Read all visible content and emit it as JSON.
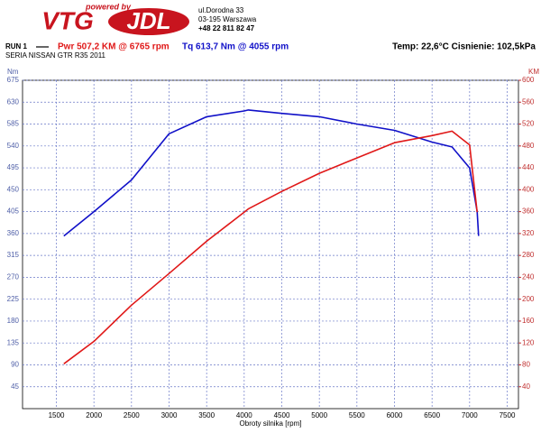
{
  "header": {
    "logo_top": "powered by",
    "logo_left": "VTG",
    "logo_right": "JDL",
    "address": [
      "ul.Dorodna 33",
      "03-195 Warszawa",
      "+48 22 811 82 47"
    ]
  },
  "run": "RUN 1",
  "subtitle": "SERIA NISSAN GTR R35 2011",
  "power_label": "Pwr  507,2 KM @ 6765 rpm",
  "torque_label": "Tq 613,7 Nm @ 4055 rpm",
  "conditions": "Temp: 22,6°C   Cisnienie: 102,5kPa",
  "chart_data": {
    "type": "line",
    "xlabel": "Obroty silnika [rpm]",
    "ylabel": "Nm",
    "y2label": "KM",
    "x": [
      1600,
      2000,
      2500,
      3000,
      3500,
      4000,
      4055,
      4500,
      5000,
      5500,
      6000,
      6500,
      6765,
      7000,
      7100,
      7120
    ],
    "series": [
      {
        "name": "Tq",
        "color": "#1010c8",
        "values": [
          355,
          405,
          470,
          565,
          600,
          612,
          614,
          607,
          600,
          585,
          572,
          548,
          538,
          495,
          405,
          355
        ]
      },
      {
        "name": "Pwr",
        "color": "#e01818",
        "axis": "y2",
        "values": [
          82,
          123,
          189,
          247,
          306,
          359,
          365,
          397,
          430,
          458,
          486,
          499,
          507,
          482,
          359,
          null
        ]
      }
    ],
    "xlim": [
      1050,
      7650
    ],
    "xticks": [
      1500,
      2000,
      2500,
      3000,
      3500,
      4000,
      4500,
      5000,
      5500,
      6000,
      6500,
      7000,
      7500
    ],
    "ylim": [
      0,
      675
    ],
    "yticks": [
      45,
      90,
      135,
      180,
      225,
      270,
      315,
      360,
      405,
      450,
      495,
      540,
      585,
      630,
      675
    ],
    "y2lim": [
      0,
      600
    ],
    "y2ticks": [
      40,
      80,
      120,
      160,
      200,
      240,
      280,
      320,
      360,
      400,
      440,
      480,
      520,
      560,
      600
    ],
    "grid": true
  }
}
